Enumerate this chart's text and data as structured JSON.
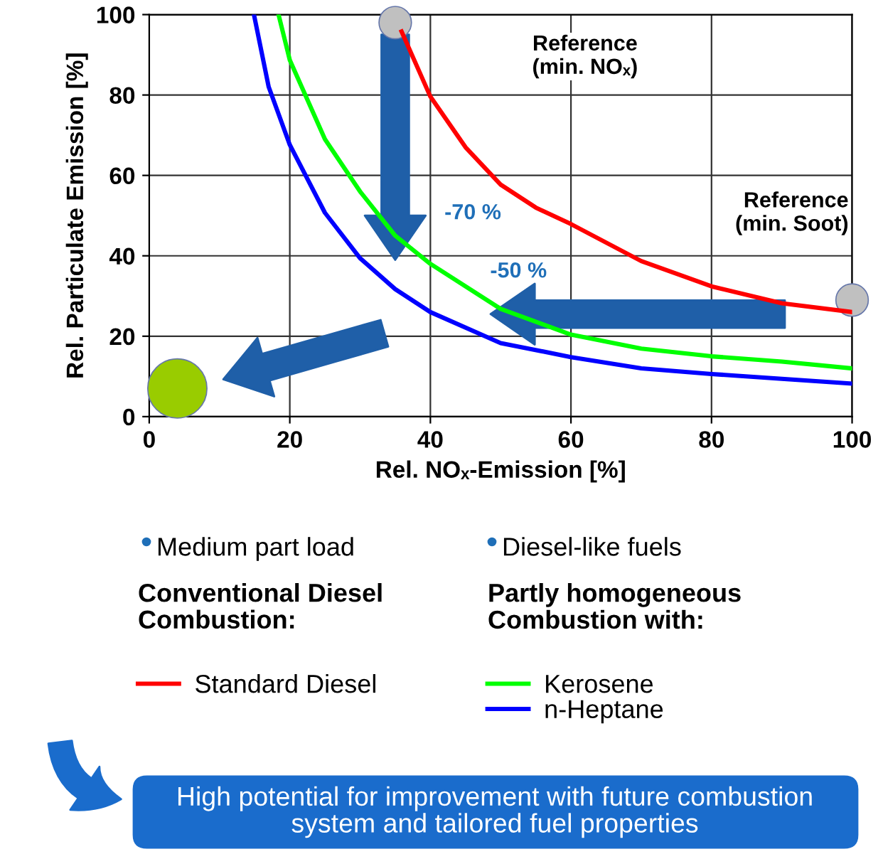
{
  "chart_data": {
    "type": "line",
    "xlabel": "Rel. NOₓ-Emission [%]",
    "ylabel": "Rel. Particulate Emission [%]",
    "xlim": [
      0,
      100
    ],
    "ylim": [
      0,
      100
    ],
    "xticks": [
      0,
      20,
      40,
      60,
      80,
      100
    ],
    "yticks": [
      0,
      20,
      40,
      60,
      80,
      100
    ],
    "grid": true,
    "legend": "bottom",
    "series": [
      {
        "name": "Standard Diesel",
        "color": "#ff0000",
        "x": [
          35.9,
          40,
          45,
          50,
          55,
          60,
          70,
          80,
          90,
          100
        ],
        "values": [
          95.8,
          79.6,
          67,
          57.7,
          52,
          47.9,
          38.7,
          32.4,
          28.2,
          26
        ]
      },
      {
        "name": "Kerosene",
        "color": "#00ff00",
        "x": [
          18.4,
          20,
          25,
          30,
          35,
          40,
          50,
          60,
          70,
          80,
          90,
          100
        ],
        "values": [
          100,
          88.7,
          69,
          56,
          45,
          38,
          26.8,
          20.4,
          16.9,
          15,
          13.7,
          12
        ]
      },
      {
        "name": "n-Heptane",
        "color": "#0000ff",
        "x": [
          14.9,
          17,
          20,
          25,
          30,
          35,
          40,
          50,
          60,
          70,
          80,
          90,
          100
        ],
        "values": [
          100,
          82,
          67.6,
          50.7,
          39.4,
          31.7,
          26,
          18.3,
          14.8,
          12,
          10.6,
          9.4,
          8.2
        ]
      },
      {
        "type": "bubble",
        "marker": "circle",
        "color": "#c0c0c0",
        "x": [
          35,
          100
        ],
        "values": [
          98,
          29
        ],
        "sizes": [
          0.3,
          0.3
        ]
      },
      {
        "type": "bubble",
        "marker": "circle",
        "color": "#99cc00",
        "x": [
          4
        ],
        "values": [
          7
        ],
        "sizes": [
          1
        ]
      }
    ],
    "annotations": [
      "Reference\n(min. NOₓ)",
      "Reference\n(min. Soot)",
      "-70 %",
      "-50 %",
      "Medium part load",
      "Diesel-like fuels",
      "Conventional Diesel\nCombustion:",
      "Partly homogeneous\nCombustion with:",
      "High potential for improvement with future combustion\nsystem and tailored fuel properties"
    ]
  }
}
